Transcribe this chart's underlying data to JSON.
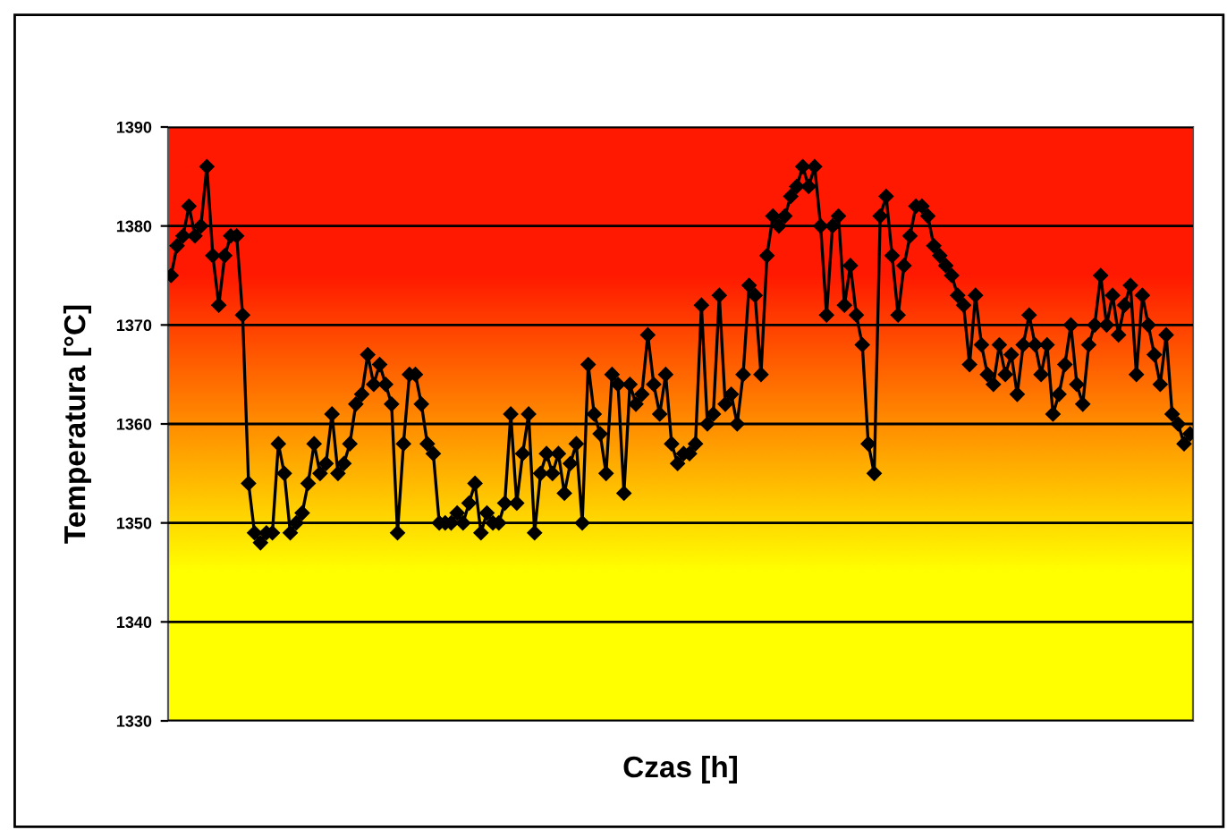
{
  "chart_data": {
    "type": "line",
    "xlabel": "Czas [h]",
    "ylabel": "Temperatura [°C]",
    "ylim": [
      1330,
      1390
    ],
    "yticks": [
      1330,
      1340,
      1350,
      1360,
      1370,
      1380,
      1390
    ],
    "grid": "y",
    "tick_labels": "y",
    "marker": "diamond",
    "line_style": "solid",
    "categories": [
      null,
      null,
      null,
      null,
      null,
      null,
      null,
      null,
      null,
      null,
      null,
      null,
      null,
      null,
      null,
      null,
      null,
      null,
      null,
      null,
      null,
      null,
      null,
      null,
      null,
      null,
      null,
      null,
      null,
      null,
      null,
      null,
      null,
      null,
      null,
      null,
      null,
      null,
      null,
      null,
      null,
      null,
      null,
      null,
      null,
      null,
      null,
      null,
      null,
      null,
      null,
      null,
      null,
      null,
      null,
      null,
      null,
      null,
      null,
      null,
      null,
      null,
      null,
      null,
      null,
      null,
      null,
      null,
      null,
      null,
      null,
      null,
      null,
      null,
      null,
      null,
      null,
      null,
      null,
      null,
      null,
      null,
      null,
      null,
      null,
      null,
      null,
      null,
      null,
      null,
      null,
      null,
      null,
      null,
      null,
      null,
      null,
      null,
      null,
      null,
      null,
      null,
      null,
      null,
      null,
      null,
      null,
      null,
      null,
      null,
      null,
      null,
      null,
      null,
      null,
      null,
      null,
      null,
      null,
      null,
      null,
      null,
      null,
      null,
      null,
      null,
      null,
      null,
      null,
      null,
      null,
      null,
      null,
      null,
      null,
      null,
      null,
      null,
      null,
      null,
      null,
      null,
      null,
      null,
      null,
      null,
      null,
      null,
      null,
      null,
      null,
      null,
      null,
      null,
      null,
      null,
      null,
      null,
      null,
      null,
      null,
      null,
      null,
      null,
      null,
      null,
      null,
      null,
      null,
      null,
      null,
      null
    ],
    "series": [
      {
        "color": "#000000",
        "values": [
          1375,
          1378,
          1379,
          1382,
          1379,
          1380,
          1386,
          1377,
          1372,
          1377,
          1379,
          1379,
          1371,
          1354,
          1349,
          1348,
          1349,
          1349,
          1358,
          1355,
          1349,
          1350,
          1351,
          1354,
          1358,
          1355,
          1356,
          1361,
          1355,
          1356,
          1358,
          1362,
          1363,
          1367,
          1364,
          1366,
          1364,
          1362,
          1349,
          1358,
          1365,
          1365,
          1362,
          1358,
          1357,
          1350,
          1350,
          1350,
          1351,
          1350,
          1352,
          1354,
          1349,
          1351,
          1350,
          1350,
          1352,
          1361,
          1352,
          1357,
          1361,
          1349,
          1355,
          1357,
          1355,
          1357,
          1353,
          1356,
          1358,
          1350,
          1366,
          1361,
          1359,
          1355,
          1365,
          1364,
          1353,
          1364,
          1362,
          1363,
          1369,
          1364,
          1361,
          1365,
          1358,
          1356,
          1357,
          1357,
          1358,
          1372,
          1360,
          1361,
          1373,
          1362,
          1363,
          1360,
          1365,
          1374,
          1373,
          1365,
          1377,
          1381,
          1380,
          1381,
          1383,
          1384,
          1386,
          1384,
          1386,
          1380,
          1371,
          1380,
          1381,
          1372,
          1376,
          1371,
          1368,
          1358,
          1355,
          1381,
          1383,
          1377,
          1371,
          1376,
          1379,
          1382,
          1382,
          1381,
          1378,
          1377,
          1376,
          1375,
          1373,
          1372,
          1366,
          1373,
          1368,
          1365,
          1364,
          1368,
          1365,
          1367,
          1363,
          1368,
          1371,
          1368,
          1365,
          1368,
          1361,
          1363,
          1366,
          1370,
          1364,
          1362,
          1368,
          1370,
          1375,
          1370,
          1373,
          1369,
          1372,
          1374,
          1365,
          1373,
          1370,
          1367,
          1364,
          1369,
          1361,
          1360,
          1358,
          1359
        ]
      }
    ]
  }
}
